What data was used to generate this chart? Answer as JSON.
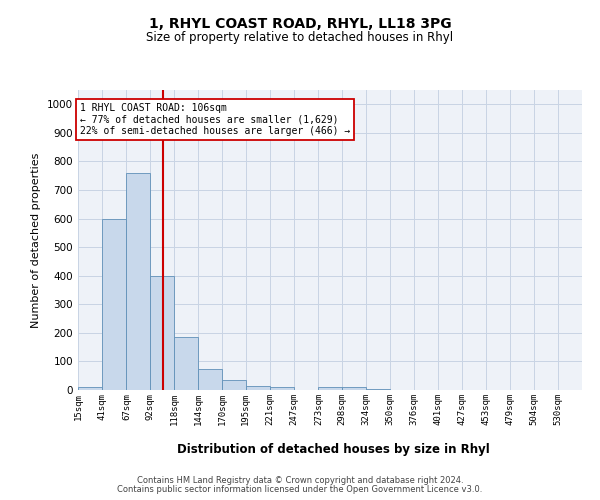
{
  "title1": "1, RHYL COAST ROAD, RHYL, LL18 3PG",
  "title2": "Size of property relative to detached houses in Rhyl",
  "xlabel": "Distribution of detached houses by size in Rhyl",
  "ylabel": "Number of detached properties",
  "bin_labels": [
    "15sqm",
    "41sqm",
    "67sqm",
    "92sqm",
    "118sqm",
    "144sqm",
    "170sqm",
    "195sqm",
    "221sqm",
    "247sqm",
    "273sqm",
    "298sqm",
    "324sqm",
    "350sqm",
    "376sqm",
    "401sqm",
    "427sqm",
    "453sqm",
    "479sqm",
    "504sqm",
    "530sqm"
  ],
  "bin_edges": [
    15,
    41,
    67,
    92,
    118,
    144,
    170,
    195,
    221,
    247,
    273,
    298,
    324,
    350,
    376,
    401,
    427,
    453,
    479,
    504,
    530
  ],
  "bar_values": [
    10,
    600,
    760,
    400,
    185,
    75,
    35,
    15,
    10,
    0,
    10,
    10,
    5,
    0,
    0,
    0,
    0,
    0,
    0,
    0
  ],
  "bar_color": "#c8d8eb",
  "bar_edge_color": "#6090b8",
  "vline_x": 106,
  "vline_color": "#cc0000",
  "ylim": [
    0,
    1050
  ],
  "yticks": [
    0,
    100,
    200,
    300,
    400,
    500,
    600,
    700,
    800,
    900,
    1000
  ],
  "annotation_text": "1 RHYL COAST ROAD: 106sqm\n← 77% of detached houses are smaller (1,629)\n22% of semi-detached houses are larger (466) →",
  "annotation_box_color": "#ffffff",
  "annotation_box_edge": "#cc0000",
  "footer1": "Contains HM Land Registry data © Crown copyright and database right 2024.",
  "footer2": "Contains public sector information licensed under the Open Government Licence v3.0.",
  "grid_color": "#c8d4e4",
  "background_color": "#eef2f8"
}
